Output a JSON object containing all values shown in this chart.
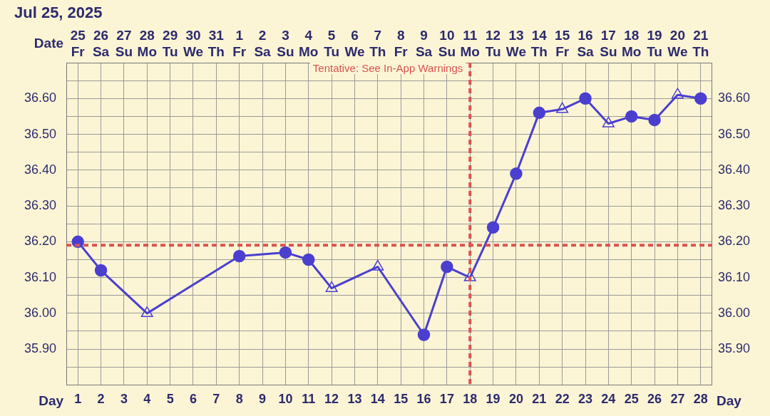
{
  "chart_data": {
    "type": "line",
    "title": "Jul 25, 2025",
    "xlabel": "Day",
    "x2label": "Date",
    "xlim": [
      0.5,
      28.5
    ],
    "xticks": [
      1,
      2,
      3,
      4,
      5,
      6,
      7,
      8,
      9,
      10,
      11,
      12,
      13,
      14,
      15,
      16,
      17,
      18,
      19,
      20,
      21,
      22,
      23,
      24,
      25,
      26,
      27,
      28
    ],
    "x2lim": [
      "2025-07-24T12:00",
      "2025-08-21T12:00"
    ],
    "x2ticks": [
      {
        "value": "2025-07-25T00:00",
        "label": "25 Fr"
      },
      {
        "value": "2025-07-26T00:00",
        "label": "26 Sa"
      },
      {
        "value": "2025-07-27T00:00",
        "label": "27 Su"
      },
      {
        "value": "2025-07-28T00:00",
        "label": "28 Mo"
      },
      {
        "value": "2025-07-29T00:00",
        "label": "29 Tu"
      },
      {
        "value": "2025-07-30T00:00",
        "label": "30 We"
      },
      {
        "value": "2025-07-31T00:00",
        "label": "31 Th"
      },
      {
        "value": "2025-08-01T00:00",
        "label": "1 Fr"
      },
      {
        "value": "2025-08-02T00:00",
        "label": "2 Sa"
      },
      {
        "value": "2025-08-03T00:00",
        "label": "3 Su"
      },
      {
        "value": "2025-08-04T00:00",
        "label": "4 Mo"
      },
      {
        "value": "2025-08-05T00:00",
        "label": "5 Tu"
      },
      {
        "value": "2025-08-06T00:00",
        "label": "6 We"
      },
      {
        "value": "2025-08-07T00:00",
        "label": "7 Th"
      },
      {
        "value": "2025-08-08T00:00",
        "label": "8 Fr"
      },
      {
        "value": "2025-08-09T00:00",
        "label": "9 Sa"
      },
      {
        "value": "2025-08-10T00:00",
        "label": "10 Su"
      },
      {
        "value": "2025-08-11T00:00",
        "label": "11 Mo"
      },
      {
        "value": "2025-08-12T00:00",
        "label": "12 Tu"
      },
      {
        "value": "2025-08-13T00:00",
        "label": "13 We"
      },
      {
        "value": "2025-08-14T00:00",
        "label": "14 Th"
      },
      {
        "value": "2025-08-15T00:00",
        "label": "15 Fr"
      },
      {
        "value": "2025-08-16T00:00",
        "label": "16 Sa"
      },
      {
        "value": "2025-08-17T00:00",
        "label": "17 Su"
      },
      {
        "value": "2025-08-18T00:00",
        "label": "18 Mo"
      },
      {
        "value": "2025-08-19T00:00",
        "label": "19 Tu"
      },
      {
        "value": "2025-08-20T00:00",
        "label": "20 We"
      },
      {
        "value": "2025-08-21T00:00",
        "label": "21 Th"
      }
    ],
    "ylim": [
      35.8,
      36.7
    ],
    "yticks": [
      {
        "value": 35.8,
        "label": null
      },
      {
        "value": 35.85,
        "label": null
      },
      {
        "value": 35.9,
        "label": "35.90"
      },
      {
        "value": 35.95,
        "label": null
      },
      {
        "value": 36.0,
        "label": "36.00"
      },
      {
        "value": 36.05,
        "label": null
      },
      {
        "value": 36.1,
        "label": "36.10"
      },
      {
        "value": 36.15,
        "label": null
      },
      {
        "value": 36.2,
        "label": "36.20"
      },
      {
        "value": 36.25,
        "label": null
      },
      {
        "value": 36.3,
        "label": "36.30"
      },
      {
        "value": 36.35,
        "label": null
      },
      {
        "value": 36.4,
        "label": "36.40"
      },
      {
        "value": 36.45,
        "label": null
      },
      {
        "value": 36.5,
        "label": "36.50"
      },
      {
        "value": 36.55,
        "label": null
      },
      {
        "value": 36.6,
        "label": "36.60"
      },
      {
        "value": 36.65,
        "label": null
      },
      {
        "value": 36.7,
        "label": null
      }
    ],
    "y2lim": [
      35.8,
      36.7
    ],
    "y2ticks": [
      {
        "value": 35.8,
        "label": null
      },
      {
        "value": 35.85,
        "label": null
      },
      {
        "value": 35.9,
        "label": "35.90"
      },
      {
        "value": 35.95,
        "label": null
      },
      {
        "value": 36.0,
        "label": "36.00"
      },
      {
        "value": 36.05,
        "label": null
      },
      {
        "value": 36.1,
        "label": "36.10"
      },
      {
        "value": 36.15,
        "label": null
      },
      {
        "value": 36.2,
        "label": "36.20"
      },
      {
        "value": 36.25,
        "label": null
      },
      {
        "value": 36.3,
        "label": "36.30"
      },
      {
        "value": 36.35,
        "label": null
      },
      {
        "value": 36.4,
        "label": "36.40"
      },
      {
        "value": 36.45,
        "label": null
      },
      {
        "value": 36.5,
        "label": "36.50"
      },
      {
        "value": 36.55,
        "label": null
      },
      {
        "value": 36.6,
        "label": "36.60"
      },
      {
        "value": 36.65,
        "label": null
      },
      {
        "value": 36.7,
        "label": null
      }
    ],
    "grid": true,
    "legend": false,
    "ref_lines": [
      {
        "axis": "y",
        "value": 36.19,
        "color": "#d9534f",
        "line_style": "dashed"
      },
      {
        "axis": "x",
        "value": 18,
        "label": "Tentative: See In-App Warnings",
        "color": "#d9534f",
        "line_style": "dashed"
      }
    ],
    "series": [
      {
        "color": "#4b3fcf",
        "marker": "none",
        "x": [
          1,
          2,
          3,
          4,
          5,
          6,
          7,
          8,
          9,
          10,
          11,
          12,
          13,
          14,
          15,
          16,
          17,
          18,
          19,
          20,
          21,
          22,
          23,
          24,
          25,
          26,
          27,
          28
        ],
        "values": [
          36.2,
          36.12,
          null,
          36.0,
          null,
          null,
          null,
          36.16,
          null,
          36.17,
          36.15,
          36.07,
          null,
          36.13,
          null,
          35.94,
          36.13,
          36.1,
          36.24,
          36.39,
          36.56,
          36.57,
          36.6,
          36.53,
          36.55,
          36.54,
          36.61,
          36.6
        ]
      },
      {
        "type": "scatter",
        "color": "#4b3fcf",
        "marker": "circle",
        "x": [
          1,
          2,
          8,
          10,
          11,
          16,
          17,
          19,
          20,
          21,
          23,
          25,
          26,
          28
        ],
        "values": [
          36.2,
          36.12,
          36.16,
          36.17,
          36.15,
          35.94,
          36.13,
          36.24,
          36.39,
          36.56,
          36.6,
          36.55,
          36.54,
          36.6
        ]
      },
      {
        "type": "scatter",
        "color": "#4b3fcf",
        "marker": "triangle",
        "x": [
          4,
          12,
          14,
          18,
          22,
          24,
          27
        ],
        "values": [
          36.0,
          36.07,
          36.13,
          36.1,
          36.57,
          36.53,
          36.61
        ]
      }
    ]
  }
}
